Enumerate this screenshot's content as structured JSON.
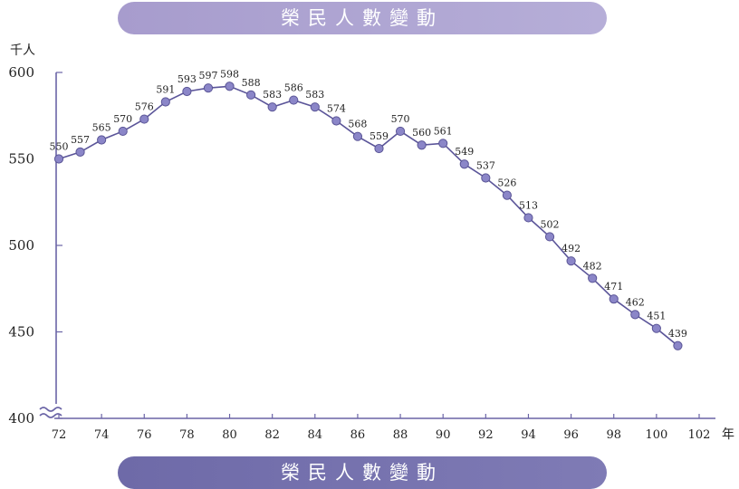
{
  "banner": {
    "top_title": "榮民人數變動",
    "bottom_title": "榮民人數變動"
  },
  "colors": {
    "line": "#5b5599",
    "marker": "#8b86c8",
    "marker_edge": "#5a5596",
    "axis": "#6a64a6"
  },
  "chart_data": {
    "type": "line",
    "title": "榮民人數變動",
    "ylabel": "千人",
    "xlabel": "年",
    "ylim": [
      400,
      600
    ],
    "xlim": [
      71.5,
      102
    ],
    "y_ticks": [
      400,
      450,
      500,
      550,
      600
    ],
    "x_ticks": [
      72,
      74,
      76,
      78,
      80,
      82,
      84,
      86,
      88,
      90,
      92,
      94,
      96,
      98,
      100,
      102
    ],
    "axis_break": true,
    "grid": false,
    "series": [
      {
        "x": [
          72,
          73,
          74,
          75,
          76,
          77,
          78,
          79,
          80,
          81,
          82,
          83,
          84,
          85,
          86,
          87,
          88,
          89,
          90,
          91,
          92,
          93,
          94,
          95,
          96,
          97,
          98,
          99,
          100,
          101
        ],
        "values": [
          550,
          557,
          565,
          570,
          576,
          591,
          593,
          597,
          598,
          588,
          583,
          586,
          583,
          574,
          568,
          559,
          570,
          560,
          561,
          549,
          537,
          526,
          513,
          502,
          492,
          482,
          471,
          462,
          451,
          439
        ],
        "marker_values": [
          550,
          554,
          561,
          566,
          573,
          583,
          589,
          591,
          592,
          587,
          580,
          584,
          580,
          572,
          563,
          556,
          566,
          558,
          559,
          547,
          539,
          529,
          516,
          505,
          491,
          481,
          469,
          460,
          452,
          442
        ]
      }
    ]
  }
}
